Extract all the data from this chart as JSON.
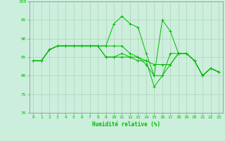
{
  "xlabel": "Humidité relative (%)",
  "background_color": "#cceedd",
  "grid_color": "#aaccaa",
  "line_color": "#00bb00",
  "xlim": [
    -0.5,
    23.5
  ],
  "ylim": [
    70,
    100
  ],
  "xticks": [
    0,
    1,
    2,
    3,
    4,
    5,
    6,
    7,
    8,
    9,
    10,
    11,
    12,
    13,
    14,
    15,
    16,
    17,
    18,
    19,
    20,
    21,
    22,
    23
  ],
  "yticks": [
    70,
    75,
    80,
    85,
    90,
    95,
    100
  ],
  "series": [
    [
      84,
      84,
      87,
      88,
      88,
      88,
      88,
      88,
      88,
      88,
      94,
      96,
      94,
      93,
      86,
      80,
      95,
      92,
      86,
      86,
      84,
      80,
      82,
      81
    ],
    [
      84,
      84,
      87,
      88,
      88,
      88,
      88,
      88,
      88,
      88,
      88,
      88,
      86,
      85,
      84,
      83,
      83,
      83,
      86,
      86,
      84,
      80,
      82,
      81
    ],
    [
      84,
      84,
      87,
      88,
      88,
      88,
      88,
      88,
      88,
      85,
      85,
      85,
      85,
      85,
      83,
      80,
      80,
      83,
      86,
      86,
      84,
      80,
      82,
      81
    ],
    [
      84,
      84,
      87,
      88,
      88,
      88,
      88,
      88,
      88,
      85,
      85,
      86,
      85,
      84,
      84,
      77,
      80,
      86,
      86,
      86,
      84,
      80,
      82,
      81
    ]
  ]
}
